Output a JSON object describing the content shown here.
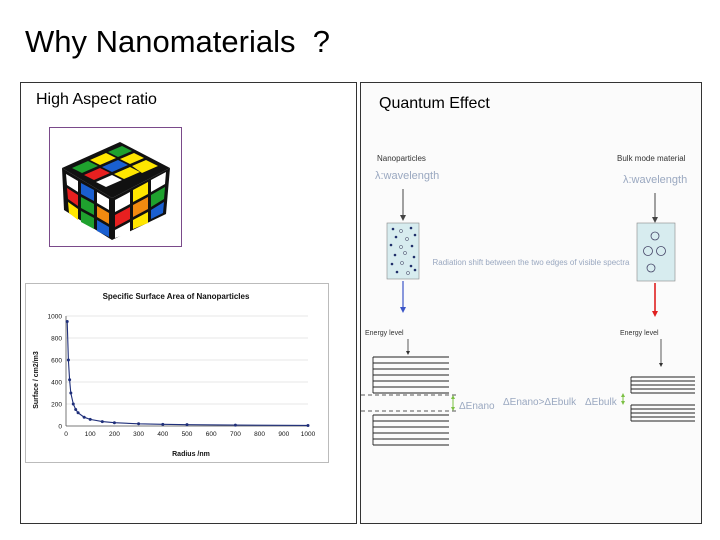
{
  "slide": {
    "title": "Why Nanomaterials  ?",
    "left_heading": "High Aspect ratio",
    "right_heading": "Quantum Effect"
  },
  "chart_data": {
    "type": "line",
    "title": "Specific Surface Area of Nanoparticles",
    "xlabel": "Radius /nm",
    "ylabel": "Surface / cm2/m3",
    "xlim": [
      0,
      1000
    ],
    "ylim": [
      0,
      1000
    ],
    "xticks": [
      0,
      100,
      200,
      300,
      400,
      500,
      600,
      700,
      800,
      900,
      1000
    ],
    "yticks": [
      0,
      200,
      400,
      600,
      800,
      1000
    ],
    "grid": true,
    "series": [
      {
        "color": "#1f2f7a",
        "x": [
          5,
          10,
          15,
          20,
          30,
          40,
          50,
          75,
          100,
          150,
          200,
          300,
          400,
          500,
          700,
          1000
        ],
        "y": [
          950,
          600,
          420,
          300,
          200,
          150,
          120,
          80,
          60,
          40,
          30,
          20,
          15,
          12,
          8,
          5
        ]
      }
    ]
  },
  "quantum": {
    "nano_label": "Nanoparticles",
    "bulk_label": "Bulk mode material",
    "wavelength_label": "λ:wavelength",
    "shift_label": "Radiation shift between the two edges of visible spectra",
    "energy_level_label": "Energy level",
    "delta_nano": "ΔEnano",
    "delta_compare": "ΔEnano>ΔEbulk",
    "delta_bulk": "ΔEbulk",
    "nano_arrow_color": "#3b55c8",
    "bulk_arrow_color": "#e02020"
  }
}
